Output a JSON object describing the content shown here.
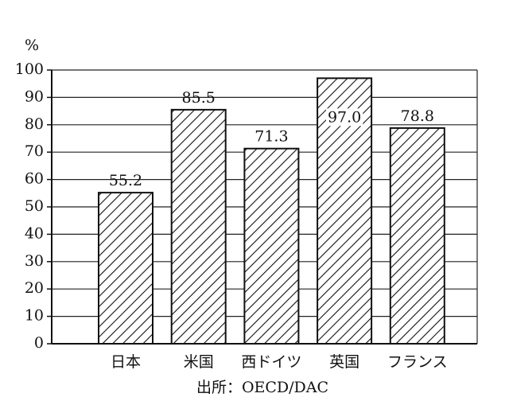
{
  "chart_data": {
    "type": "bar",
    "y_label": "%",
    "categories": [
      "日本",
      "米国",
      "西ドイツ",
      "英国",
      "フランス"
    ],
    "values": [
      55.2,
      85.5,
      71.3,
      97.0,
      78.8
    ],
    "value_labels": [
      "55.2",
      "85.5",
      "71.3",
      "97.0",
      "78.8"
    ],
    "ylim": [
      0,
      100
    ],
    "yticks": [
      0,
      10,
      20,
      30,
      40,
      50,
      60,
      70,
      80,
      90,
      100
    ],
    "grid": true,
    "hatch": true,
    "color": "#111111",
    "source": "出所：OECD/DAC"
  }
}
